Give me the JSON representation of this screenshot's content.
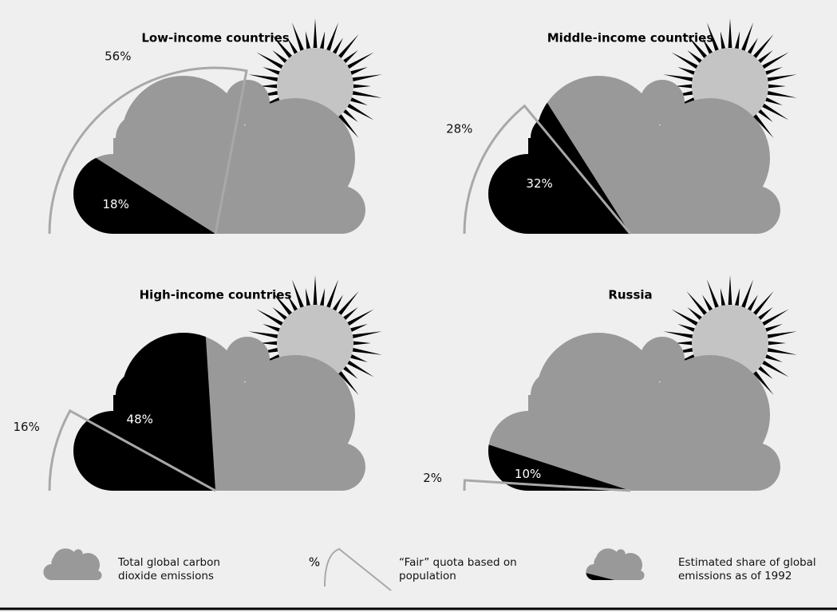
{
  "chart_data": [
    {
      "type": "pie",
      "title": "Low-income countries",
      "values": [
        18,
        56
      ],
      "value_labels": [
        "18%",
        "56%"
      ]
    },
    {
      "type": "pie",
      "title": "Middle-income countries",
      "values": [
        32,
        28
      ],
      "value_labels": [
        "32%",
        "28%"
      ]
    },
    {
      "type": "pie",
      "title": "High-income countries",
      "values": [
        48,
        16
      ],
      "value_labels": [
        "48%",
        "16%"
      ]
    },
    {
      "type": "pie",
      "title": "Russia",
      "values": [
        10,
        2
      ],
      "value_labels": [
        "10%",
        "2%"
      ]
    }
  ],
  "colors": {
    "total": "#999999",
    "share": "#000000",
    "quota": "#a8a8a8"
  },
  "legend": [
    {
      "label": "Total global carbon dioxide emissions"
    },
    {
      "symbol": "%",
      "label": "“Fair” quota based on population"
    },
    {
      "label": "Estimated share of global emissions as of 1992"
    }
  ]
}
